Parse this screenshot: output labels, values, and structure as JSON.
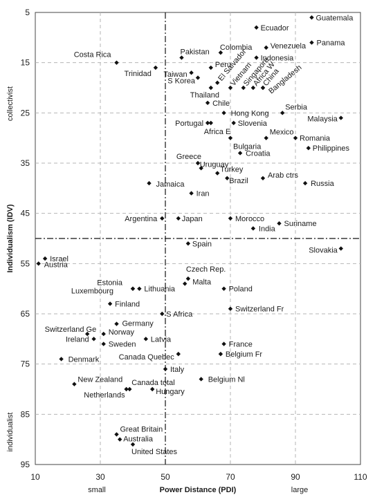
{
  "chart_data": {
    "type": "scatter",
    "title": "",
    "xlabel": "Power Distance (PDI)",
    "ylabel": "Individualism (IDV)",
    "xlim": [
      10,
      110
    ],
    "ylim": [
      5,
      95
    ],
    "y_inverted": true,
    "x_ticks": [
      10,
      30,
      50,
      70,
      90,
      110
    ],
    "y_ticks": [
      5,
      15,
      25,
      35,
      45,
      55,
      65,
      75,
      85,
      95
    ],
    "x_notes": {
      "low": "small",
      "high": "large"
    },
    "y_notes": {
      "top": "collectivist",
      "bottom": "individualist"
    },
    "grid": true,
    "dividers": {
      "x": 50,
      "y": 50
    },
    "points": [
      {
        "label": "Guatemala",
        "x": 95,
        "y": 6
      },
      {
        "label": "Ecuador",
        "x": 78,
        "y": 8
      },
      {
        "label": "Panama",
        "x": 95,
        "y": 11
      },
      {
        "label": "Venezuela",
        "x": 81,
        "y": 12
      },
      {
        "label": "Colombia",
        "x": 67,
        "y": 13
      },
      {
        "label": "Pakistan",
        "x": 55,
        "y": 14
      },
      {
        "label": "Indonesia",
        "x": 78,
        "y": 14
      },
      {
        "label": "Costa Rica",
        "x": 35,
        "y": 15
      },
      {
        "label": "Peru",
        "x": 64,
        "y": 16
      },
      {
        "label": "Trinidad",
        "x": 47,
        "y": 16
      },
      {
        "label": "Taiwan",
        "x": 58,
        "y": 17
      },
      {
        "label": "El Salvador",
        "x": 66,
        "y": 19
      },
      {
        "label": "S Korea",
        "x": 60,
        "y": 18
      },
      {
        "label": "Vietnam",
        "x": 70,
        "y": 20
      },
      {
        "label": "Singapore",
        "x": 74,
        "y": 20
      },
      {
        "label": "Africa W",
        "x": 77,
        "y": 20
      },
      {
        "label": "China",
        "x": 80,
        "y": 20
      },
      {
        "label": "Bangladesh",
        "x": 80,
        "y": 20
      },
      {
        "label": "Thailand",
        "x": 64,
        "y": 20
      },
      {
        "label": "Chile",
        "x": 63,
        "y": 23
      },
      {
        "label": "Hong Kong",
        "x": 68,
        "y": 25
      },
      {
        "label": "Serbia",
        "x": 86,
        "y": 25
      },
      {
        "label": "Malaysia",
        "x": 104,
        "y": 26
      },
      {
        "label": "Portugal",
        "x": 63,
        "y": 27
      },
      {
        "label": "Africa E",
        "x": 64,
        "y": 27
      },
      {
        "label": "Slovenia",
        "x": 71,
        "y": 27
      },
      {
        "label": "Mexico",
        "x": 81,
        "y": 30
      },
      {
        "label": "Romania",
        "x": 90,
        "y": 30
      },
      {
        "label": "Bulgaria",
        "x": 70,
        "y": 30
      },
      {
        "label": "Philippines",
        "x": 94,
        "y": 32
      },
      {
        "label": "Croatia",
        "x": 73,
        "y": 33
      },
      {
        "label": "Greece",
        "x": 60,
        "y": 35
      },
      {
        "label": "Uruguay",
        "x": 61,
        "y": 36
      },
      {
        "label": "Turkey",
        "x": 66,
        "y": 37
      },
      {
        "label": "Brazil",
        "x": 69,
        "y": 38
      },
      {
        "label": "Arab ctrs",
        "x": 80,
        "y": 38
      },
      {
        "label": "Jamaica",
        "x": 45,
        "y": 39
      },
      {
        "label": "Russia",
        "x": 93,
        "y": 39
      },
      {
        "label": "Iran",
        "x": 58,
        "y": 41
      },
      {
        "label": "Argentina",
        "x": 49,
        "y": 46
      },
      {
        "label": "Japan",
        "x": 54,
        "y": 46
      },
      {
        "label": "Morocco",
        "x": 70,
        "y": 46
      },
      {
        "label": "Suriname",
        "x": 85,
        "y": 47
      },
      {
        "label": "India",
        "x": 77,
        "y": 48
      },
      {
        "label": "Spain",
        "x": 57,
        "y": 51
      },
      {
        "label": "Slovakia",
        "x": 104,
        "y": 52
      },
      {
        "label": "Israel",
        "x": 13,
        "y": 54
      },
      {
        "label": "Austria",
        "x": 11,
        "y": 55
      },
      {
        "label": "Czech Rep.",
        "x": 57,
        "y": 58
      },
      {
        "label": "Malta",
        "x": 56,
        "y": 59
      },
      {
        "label": "Estonia",
        "x": 40,
        "y": 60
      },
      {
        "label": "Luxembourg",
        "x": 40,
        "y": 60
      },
      {
        "label": "Lithuania",
        "x": 42,
        "y": 60
      },
      {
        "label": "Poland",
        "x": 68,
        "y": 60
      },
      {
        "label": "Finland",
        "x": 33,
        "y": 63
      },
      {
        "label": "Switzerland Fr",
        "x": 70,
        "y": 64
      },
      {
        "label": "S Africa",
        "x": 49,
        "y": 65
      },
      {
        "label": "Germany",
        "x": 35,
        "y": 67
      },
      {
        "label": "Switzerland Ge",
        "x": 26,
        "y": 69
      },
      {
        "label": "Norway",
        "x": 31,
        "y": 69
      },
      {
        "label": "Ireland",
        "x": 28,
        "y": 70
      },
      {
        "label": "Latvia",
        "x": 44,
        "y": 70
      },
      {
        "label": "Sweden",
        "x": 31,
        "y": 71
      },
      {
        "label": "France",
        "x": 68,
        "y": 71
      },
      {
        "label": "Canada Quebec",
        "x": 54,
        "y": 73
      },
      {
        "label": "Belgium Fr",
        "x": 67,
        "y": 73
      },
      {
        "label": "Denmark",
        "x": 18,
        "y": 74
      },
      {
        "label": "Italy",
        "x": 50,
        "y": 76
      },
      {
        "label": "Belgium Nl",
        "x": 61,
        "y": 78
      },
      {
        "label": "New Zealand",
        "x": 22,
        "y": 79
      },
      {
        "label": "Netherlands",
        "x": 38,
        "y": 80
      },
      {
        "label": "Canada total",
        "x": 39,
        "y": 80
      },
      {
        "label": "Hungary",
        "x": 46,
        "y": 80
      },
      {
        "label": "Great Britain",
        "x": 35,
        "y": 89
      },
      {
        "label": "Australia",
        "x": 36,
        "y": 90
      },
      {
        "label": "United States",
        "x": 40,
        "y": 91
      }
    ]
  }
}
